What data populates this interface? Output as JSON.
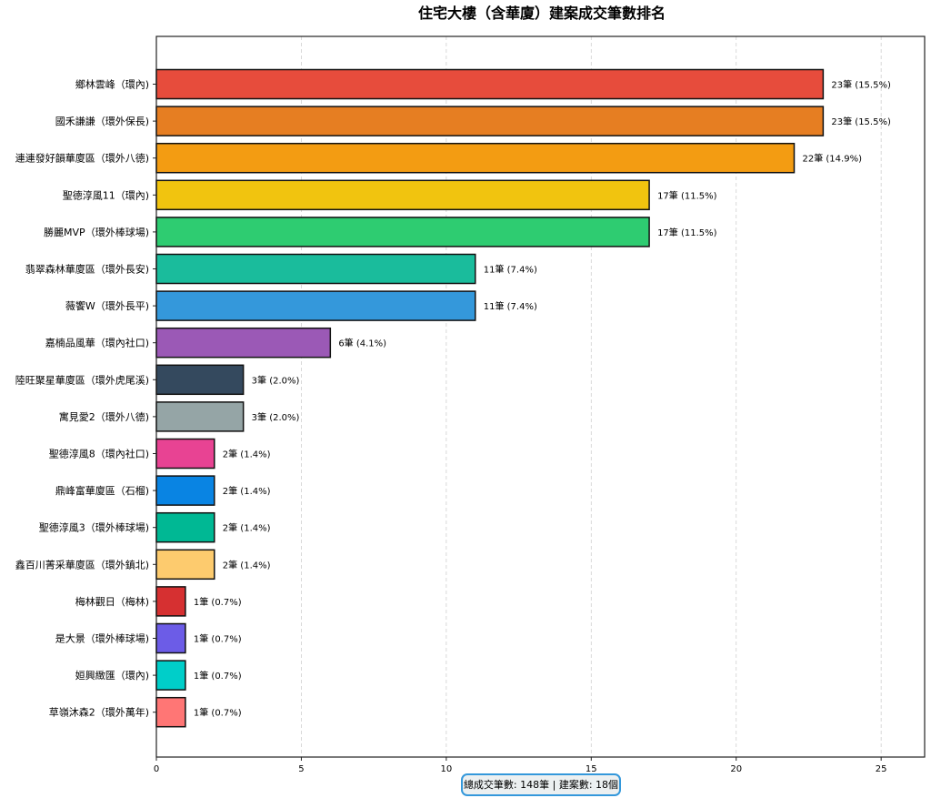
{
  "chart_data": {
    "type": "bar",
    "orientation": "horizontal",
    "title": "住宅大樓（含華廈）建案成交筆數排名",
    "xlim": [
      0,
      26.5
    ],
    "xticks": [
      0,
      5,
      10,
      15,
      20,
      25
    ],
    "grid": "x-dashed",
    "categories": [
      "鄉林雲峰（環內)",
      "國禾謙謙（環外保長)",
      "連連發好韻華廈區（環外八德)",
      "聖德淳風11（環內)",
      "勝麗MVP（環外棒球場)",
      "翡翠森林華廈區（環外長安)",
      "薇饗W（環外長平)",
      "嘉楠品風華（環內社口)",
      "陸旺聚星華廈區（環外虎尾溪)",
      "寓見愛2（環外八德)",
      "聖德淳風8（環內社口)",
      "鼎峰富華廈區（石榴)",
      "聖德淳風3（環外棒球場)",
      "鑫百川菁采華廈區（環外鎮北)",
      "梅林觀日（梅林)",
      "是大景（環外棒球場)",
      "姮興緻匯（環內)",
      "草嶺沐森2（環外萬年)"
    ],
    "values": [
      23,
      23,
      22,
      17,
      17,
      11,
      11,
      6,
      3,
      3,
      2,
      2,
      2,
      2,
      1,
      1,
      1,
      1
    ],
    "value_labels": [
      "23筆 (15.5%)",
      "23筆 (15.5%)",
      "22筆 (14.9%)",
      "17筆 (11.5%)",
      "17筆 (11.5%)",
      "11筆 (7.4%)",
      "11筆 (7.4%)",
      "6筆 (4.1%)",
      "3筆 (2.0%)",
      "3筆 (2.0%)",
      "2筆 (1.4%)",
      "2筆 (1.4%)",
      "2筆 (1.4%)",
      "2筆 (1.4%)",
      "1筆 (0.7%)",
      "1筆 (0.7%)",
      "1筆 (0.7%)",
      "1筆 (0.7%)"
    ],
    "colors": [
      "#e74c3c",
      "#e67e22",
      "#f39c12",
      "#f1c40f",
      "#2ecc71",
      "#1abc9c",
      "#3498db",
      "#9b59b6",
      "#34495e",
      "#95a5a6",
      "#e84393",
      "#0984e3",
      "#00b894",
      "#fdcb6e",
      "#d63031",
      "#6c5ce7",
      "#00cec9",
      "#ff7675"
    ],
    "summary": "總成交筆數: 148筆 | 建案數: 18個",
    "summary_border_color": "#3498db",
    "summary_bg_color": "#ecf0f1"
  }
}
